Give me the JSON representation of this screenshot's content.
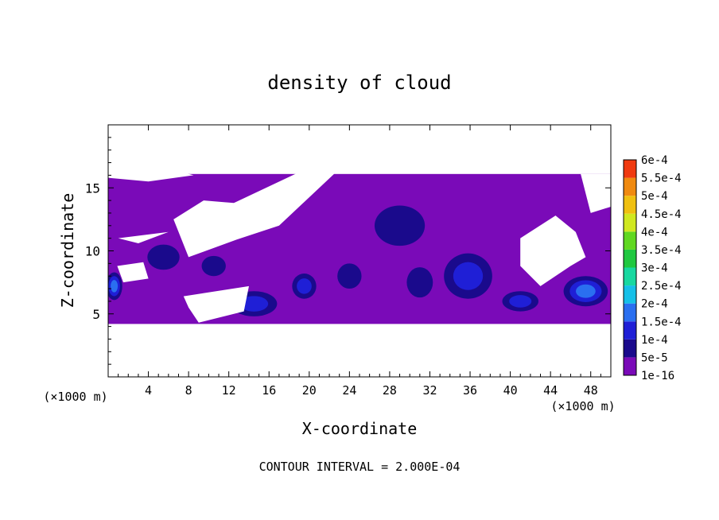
{
  "chart_data": {
    "type": "heatmap",
    "title": "density of cloud",
    "xlabel": "X-coordinate",
    "ylabel": "Z-coordinate",
    "x_unit": "(×1000 m)",
    "x_unit_right": "(×1000 m)",
    "xlim": [
      0,
      50
    ],
    "ylim": [
      0,
      20
    ],
    "x_ticks": [
      "4",
      "8",
      "12",
      "16",
      "20",
      "24",
      "28",
      "32",
      "36",
      "40",
      "44",
      "48"
    ],
    "y_ticks": [
      "5",
      "10",
      "15"
    ],
    "footer": "CONTOUR INTERVAL = 2.000E-04",
    "colorbar": {
      "labels": [
        "1e-16",
        "5e-5",
        "1e-4",
        "1.5e-4",
        "2e-4",
        "2.5e-4",
        "3e-4",
        "3.5e-4",
        "4e-4",
        "4.5e-4",
        "5e-4",
        "5.5e-4",
        "6e-4"
      ],
      "colors": [
        "#7a0ab8",
        "#1a0a8c",
        "#1f1fd6",
        "#2a6ff0",
        "#15c0e8",
        "#18d8a0",
        "#20c840",
        "#60d820",
        "#d0e820",
        "#f0c010",
        "#f08a10",
        "#f03a10",
        "#f06060"
      ]
    },
    "cloud_band": {
      "z_bottom": 4.2,
      "z_top": 16.1
    },
    "blobs": [
      {
        "x": 14.5,
        "z": 5.8,
        "rx": 2.3,
        "rz": 1.0,
        "level": 2
      },
      {
        "x": 35.8,
        "z": 8.0,
        "rx": 2.4,
        "rz": 1.8,
        "level": 2
      },
      {
        "x": 47.5,
        "z": 6.8,
        "rx": 2.2,
        "rz": 1.2,
        "level": 3
      },
      {
        "x": 41.0,
        "z": 6.0,
        "rx": 1.8,
        "rz": 0.8,
        "level": 2
      },
      {
        "x": 19.5,
        "z": 7.2,
        "rx": 1.2,
        "rz": 1.0,
        "level": 2
      },
      {
        "x": 0.6,
        "z": 7.2,
        "rx": 0.8,
        "rz": 1.1,
        "level": 3
      },
      {
        "x": 5.5,
        "z": 9.5,
        "rx": 1.6,
        "rz": 1.0,
        "level": 1
      },
      {
        "x": 29.0,
        "z": 12.0,
        "rx": 2.5,
        "rz": 1.6,
        "level": 1
      },
      {
        "x": 24.0,
        "z": 8.0,
        "rx": 1.2,
        "rz": 1.0,
        "level": 1
      },
      {
        "x": 10.5,
        "z": 8.8,
        "rx": 1.2,
        "rz": 0.8,
        "level": 1
      },
      {
        "x": 31.0,
        "z": 7.5,
        "rx": 1.3,
        "rz": 1.2,
        "level": 1
      }
    ],
    "gaps": [
      [
        [
          12.5,
          13.8
        ],
        [
          21.0,
          17.0
        ],
        [
          23.0,
          16.5
        ],
        [
          17.0,
          12.0
        ],
        [
          12.8,
          10.9
        ],
        [
          8.0,
          9.5
        ],
        [
          6.5,
          12.5
        ],
        [
          9.5,
          14.0
        ]
      ],
      [
        [
          0.0,
          16.2
        ],
        [
          6.0,
          16.5
        ],
        [
          8.5,
          16.0
        ],
        [
          4.0,
          15.5
        ],
        [
          0.0,
          15.8
        ]
      ],
      [
        [
          1.0,
          11.0
        ],
        [
          6.0,
          11.5
        ],
        [
          3.0,
          10.6
        ]
      ],
      [
        [
          7.5,
          6.4
        ],
        [
          14.0,
          7.2
        ],
        [
          13.5,
          5.2
        ],
        [
          9.0,
          4.3
        ],
        [
          8.0,
          5.5
        ]
      ],
      [
        [
          0.9,
          8.8
        ],
        [
          3.5,
          9.1
        ],
        [
          4.0,
          7.8
        ],
        [
          1.5,
          7.5
        ]
      ],
      [
        [
          41.0,
          11.0
        ],
        [
          44.5,
          12.8
        ],
        [
          46.5,
          11.5
        ],
        [
          47.5,
          9.5
        ],
        [
          46.0,
          8.8
        ],
        [
          43.0,
          7.2
        ],
        [
          41.0,
          8.8
        ]
      ],
      [
        [
          47.0,
          16.1
        ],
        [
          50.0,
          16.1
        ],
        [
          50.0,
          13.5
        ],
        [
          48.0,
          13.0
        ]
      ]
    ]
  }
}
